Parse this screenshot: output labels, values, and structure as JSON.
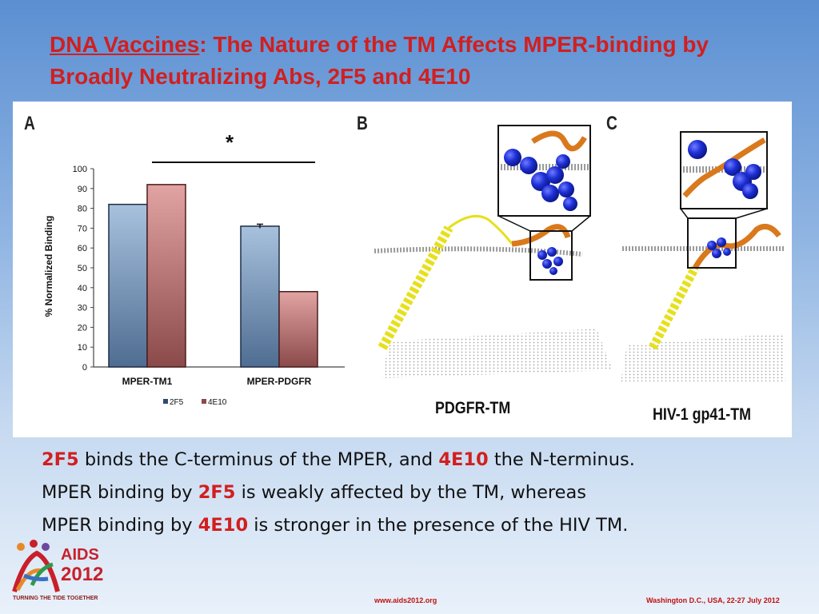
{
  "slide": {
    "title_underlined": "DNA Vaccines",
    "title_rest": ": The Nature of the TM Affects MPER-binding by Broadly Neutralizing Abs, 2F5 and 4E10"
  },
  "panels": {
    "a_letter": "A",
    "b_letter": "B",
    "c_letter": "C",
    "b_caption": "PDGFR-TM",
    "c_caption": "HIV-1 gp41-TM"
  },
  "chart_data": {
    "type": "bar",
    "categories": [
      "MPER-TM1",
      "MPER-PDGFR"
    ],
    "series": [
      {
        "name": "2F5",
        "values": [
          82,
          71
        ],
        "errors": [
          0,
          1
        ]
      },
      {
        "name": "4E10",
        "values": [
          92,
          38
        ],
        "errors": [
          0,
          0
        ]
      }
    ],
    "title": "",
    "xlabel": "",
    "ylabel": "% Normalized Binding",
    "ylim": [
      0,
      100
    ],
    "yticks": [
      0,
      10,
      20,
      30,
      40,
      50,
      60,
      70,
      80,
      90,
      100
    ],
    "grid": false,
    "legend": "bottom",
    "annotation": "*",
    "colors": {
      "2F5": "#6f8fb4",
      "4E10": "#b26a6a"
    }
  },
  "caption": {
    "line1_ab1": "2F5",
    "line1_mid": " binds the C-terminus of the MPER, and ",
    "line1_ab2": "4E10",
    "line1_end": " the N-terminus.",
    "line2_start": "MPER binding by ",
    "line2_ab": "2F5",
    "line2_end": " is weakly affected by the TM, whereas",
    "line3_start": "MPER binding by ",
    "line3_ab": "4E10",
    "line3_end": " is stronger in the presence of the HIV TM."
  },
  "logo": {
    "top": "AIDS",
    "bottom": "2012",
    "tagline": "TURNING THE TIDE TOGETHER"
  },
  "footer": {
    "url": "www.aids2012.org",
    "location": "Washington D.C., USA, 22-27 July 2012"
  },
  "colors": {
    "title_red": "#d11f1f",
    "helix_yellow": "#e6e01c",
    "helix_orange": "#d9791c",
    "sphere_blue": "#1e2fd6"
  }
}
